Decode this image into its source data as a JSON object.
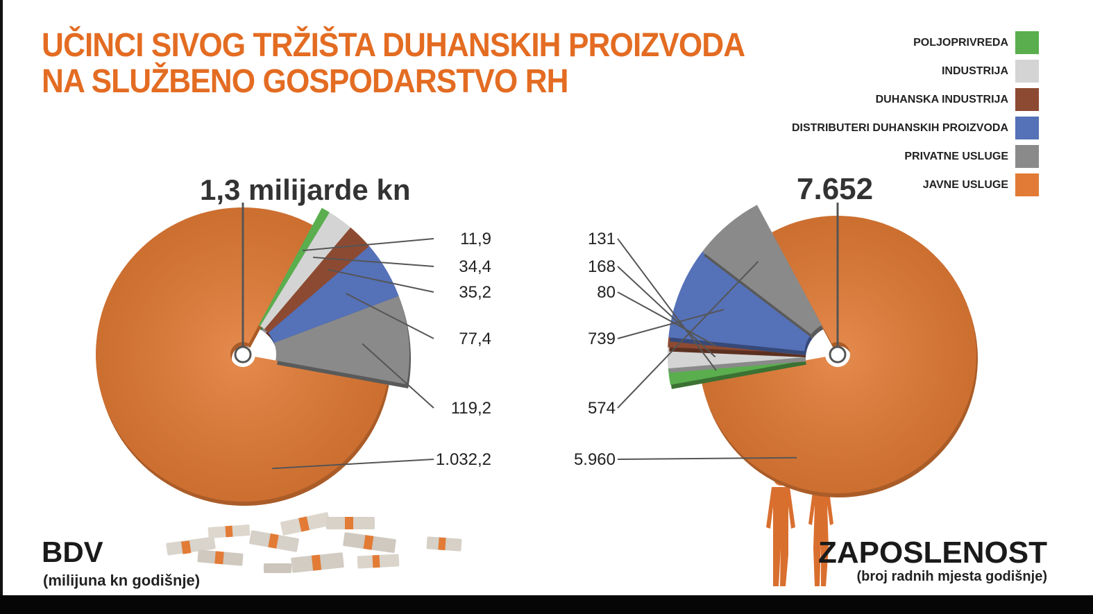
{
  "title": {
    "line1": "UČINCI SIVOG TRŽIŠTA DUHANSKIH PROIZVODA",
    "line2": "NA SLUŽBENO GOSPODARSTVO RH"
  },
  "legend": [
    {
      "label": "POLJOPRIVREDA",
      "color": "#5aae4e"
    },
    {
      "label": "INDUSTRIJA",
      "color": "#d4d4d4"
    },
    {
      "label": "DUHANSKA INDUSTRIJA",
      "color": "#8d4a32"
    },
    {
      "label": "DISTRIBUTERI DUHANSKIH PROIZVODA",
      "color": "#5571b8"
    },
    {
      "label": "PRIVATNE USLUGE",
      "color": "#8a8a8a"
    },
    {
      "label": "JAVNE USLUGE",
      "color": "#e27b35"
    }
  ],
  "left_panel": {
    "total": "1,3 milijarde kn",
    "title": "BDV",
    "subtitle": "(milijuna kn godišnje)"
  },
  "right_panel": {
    "total": "7.652",
    "title": "ZAPOSLENOST",
    "subtitle": "(broj radnih mjesta godišnje)"
  },
  "chart_data": [
    {
      "type": "pie",
      "title": "BDV",
      "categories": [
        "POLJOPRIVREDA",
        "INDUSTRIJA",
        "DUHANSKA INDUSTRIJA",
        "DISTRIBUTERI DUHANSKIH PROIZVODA",
        "PRIVATNE USLUGE",
        "JAVNE USLUGE"
      ],
      "values": [
        11.9,
        34.4,
        35.2,
        77.4,
        119.2,
        1032.2
      ],
      "labels": [
        "11,9",
        "34,4",
        "35,2",
        "77,4",
        "119,2",
        "1.032,2"
      ],
      "total_label": "1,3 milijarde kn",
      "unit": "milijuna kn godišnje"
    },
    {
      "type": "pie",
      "title": "ZAPOSLENOST",
      "categories": [
        "POLJOPRIVREDA",
        "INDUSTRIJA",
        "DUHANSKA INDUSTRIJA",
        "DISTRIBUTERI DUHANSKIH PROIZVODA",
        "PRIVATNE USLUGE",
        "JAVNE USLUGE"
      ],
      "values": [
        131,
        168,
        80,
        739,
        574,
        5960
      ],
      "labels": [
        "131",
        "168",
        "80",
        "739",
        "574",
        "5.960"
      ],
      "total_label": "7.652",
      "unit": "broj radnih mjesta godišnje"
    }
  ]
}
